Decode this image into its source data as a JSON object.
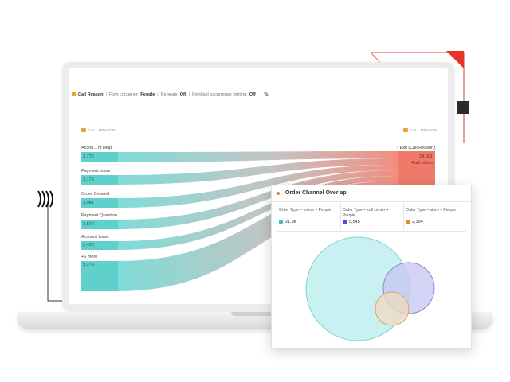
{
  "flow_panel": {
    "header": {
      "dimension": "Call Reason",
      "flow_container_label": "Flow container:",
      "flow_container_value": "People",
      "repeats_label": "Repeats:",
      "repeats_value": "Off",
      "first_last_label": "First/last occurrence limiting:",
      "first_last_value": "Off"
    },
    "left_dimension_label": "CALL REASON",
    "right_dimension_label": "CALL REASON",
    "nodes": [
      {
        "label": "Accou…nt Help",
        "count": "3,775"
      },
      {
        "label": "Payment Issue",
        "count": "3,179"
      },
      {
        "label": "Order Created",
        "count": "3,081"
      },
      {
        "label": "Payment Question",
        "count": "2,870"
      },
      {
        "label": "Account Issue",
        "count": "2,406"
      },
      {
        "label": "+6 more",
        "count": "9,279"
      }
    ],
    "exit_node": {
      "label": "• Exit (Call Reason)",
      "count": "24,591",
      "sublabel": "Path views"
    }
  },
  "overlap_card": {
    "title": "Order Channel Overlap",
    "segments": [
      {
        "name": "Order Type = online + People",
        "value": "21.9k",
        "color": "#3fc1c0"
      },
      {
        "name": "Order Type = call center + People",
        "value": "5,545",
        "color": "#4a4fd4"
      },
      {
        "name": "Order Type = store + People",
        "value": "2,394",
        "color": "#e58a2f"
      }
    ]
  },
  "colors": {
    "flow_teal": "#5fd0cc",
    "exit_coral": "#ef7a6a",
    "accent_red": "#e8332a"
  }
}
